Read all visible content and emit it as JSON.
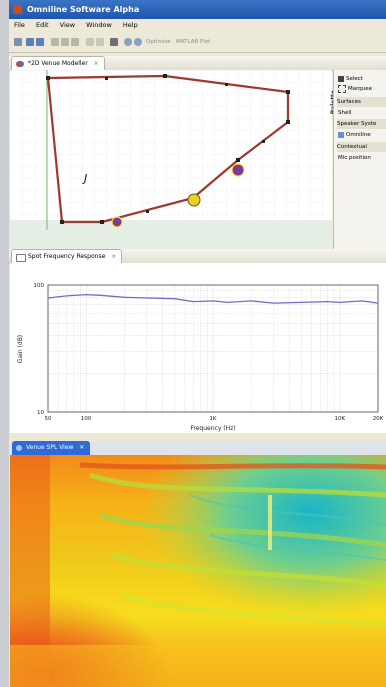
{
  "app": {
    "title": "Omniline Software Alpha"
  },
  "menu": [
    "File",
    "Edit",
    "View",
    "Window",
    "Help"
  ],
  "toolbar": {
    "optimise_label": "Optimise",
    "matlab_label": "MATLAB Plot"
  },
  "modeller": {
    "tab_label": "*2D Venue Modeller",
    "palette": {
      "header": "Palette",
      "select": "Select",
      "marquee": "Marquee",
      "surfaces": "Surfaces",
      "shell": "Shell",
      "speaker_system": "Speaker Syste",
      "omniline": "Omniline",
      "contextual": "Contextual",
      "mic_position": "Mic position"
    },
    "label_j": "J"
  },
  "frequency": {
    "tab_label": "Spot Frequency Response",
    "chart_data": {
      "type": "line",
      "xlabel": "Frequency (Hz)",
      "ylabel": "Gain (dB)",
      "xscale": "log",
      "xlim": [
        50,
        20000
      ],
      "ylim": [
        10,
        100
      ],
      "x_ticks": [
        "50",
        "100",
        "1K",
        "10K",
        "20K"
      ],
      "y_ticks": [
        "10",
        "100"
      ],
      "grid": true,
      "series": [
        {
          "color": "#6a6fc6",
          "x": [
            50,
            70,
            100,
            130,
            200,
            300,
            500,
            700,
            1000,
            1300,
            2000,
            3000,
            5000,
            8000,
            10000,
            15000,
            20000
          ],
          "y": [
            79,
            82,
            84,
            83,
            80,
            79,
            78,
            74,
            75,
            73,
            75,
            72,
            73,
            74,
            73,
            75,
            72
          ]
        }
      ]
    }
  },
  "spl": {
    "tab_label": "Venue SPL View"
  },
  "colors": {
    "titlebar": "#245edb",
    "venue_outline": "#a0382c",
    "marker_purple": "#7a3a9a",
    "marker_yellow": "#e8d02a"
  }
}
